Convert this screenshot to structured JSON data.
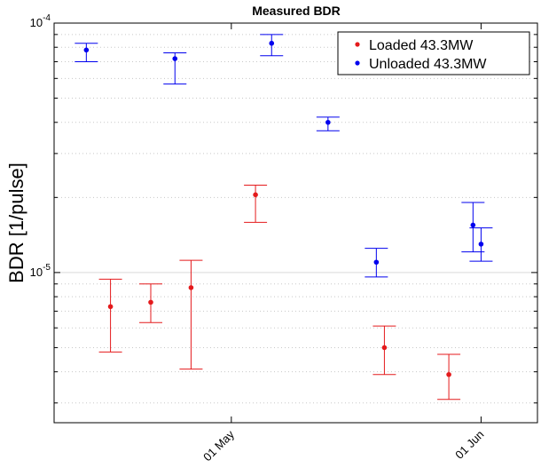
{
  "chart_data": {
    "type": "scatter",
    "title": "Measured BDR",
    "xlabel": "",
    "ylabel": "BDR [1/pulse]",
    "yscale": "log",
    "ylim": [
      2.5e-06,
      0.0001
    ],
    "y_tick_labels": [
      {
        "value": 0.0001,
        "base": "10",
        "exp": "-4"
      },
      {
        "value": 1e-05,
        "base": "10",
        "exp": "-5"
      }
    ],
    "xlim": [
      "2015-04-09",
      "2015-06-08"
    ],
    "x_ticks": [
      {
        "date": "2015-05-01",
        "label": "01 May"
      },
      {
        "date": "2015-06-01",
        "label": "01 Jun"
      }
    ],
    "grid": "minor-dotted",
    "legend_position": "top-right",
    "series": [
      {
        "name": "Loaded 43.3MW",
        "color": "#e41a1c",
        "points": [
          {
            "x": "2015-04-16",
            "y": 7.3e-06,
            "lo": 4.8e-06,
            "hi": 9.4e-06
          },
          {
            "x": "2015-04-21",
            "y": 7.6e-06,
            "lo": 6.3e-06,
            "hi": 9e-06
          },
          {
            "x": "2015-04-26",
            "y": 8.7e-06,
            "lo": 4.1e-06,
            "hi": 1.12e-05
          },
          {
            "x": "2015-05-04",
            "y": 2.05e-05,
            "lo": 1.59e-05,
            "hi": 2.24e-05
          },
          {
            "x": "2015-05-20",
            "y": 5e-06,
            "lo": 3.9e-06,
            "hi": 6.1e-06
          },
          {
            "x": "2015-05-28",
            "y": 3.9e-06,
            "lo": 3.1e-06,
            "hi": 4.7e-06
          }
        ]
      },
      {
        "name": "Unloaded 43.3MW",
        "color": "#0000ee",
        "points": [
          {
            "x": "2015-04-13",
            "y": 7.8e-05,
            "lo": 7e-05,
            "hi": 8.3e-05
          },
          {
            "x": "2015-04-24",
            "y": 7.2e-05,
            "lo": 5.7e-05,
            "hi": 7.6e-05
          },
          {
            "x": "2015-05-06",
            "y": 8.3e-05,
            "lo": 7.4e-05,
            "hi": 9e-05
          },
          {
            "x": "2015-05-13",
            "y": 4e-05,
            "lo": 3.7e-05,
            "hi": 4.2e-05
          },
          {
            "x": "2015-05-19",
            "y": 1.1e-05,
            "lo": 9.6e-06,
            "hi": 1.25e-05
          },
          {
            "x": "2015-05-31",
            "y": 1.55e-05,
            "lo": 1.21e-05,
            "hi": 1.91e-05
          },
          {
            "x": "2015-06-01",
            "y": 1.3e-05,
            "lo": 1.11e-05,
            "hi": 1.51e-05
          }
        ]
      }
    ]
  }
}
